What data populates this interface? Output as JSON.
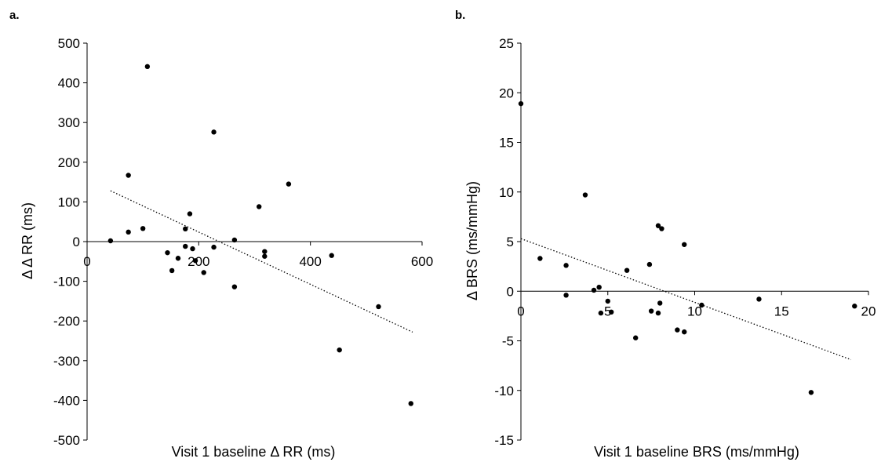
{
  "chart_data": [
    {
      "type": "scatter",
      "panel_label": "a.",
      "xlabel": "Visit 1 baseline Δ RR (ms)",
      "ylabel": "Δ  Δ RR (ms)",
      "xlim": [
        0,
        600
      ],
      "ylim": [
        -500,
        500
      ],
      "xticks": [
        "0",
        "200",
        "400",
        "600"
      ],
      "yticks": [
        "500",
        "400",
        "300",
        "200",
        "100",
        "0",
        "-100",
        "-200",
        "-300",
        "-400",
        "-500"
      ],
      "grid": false,
      "legend": "none",
      "trendline": {
        "style": "dotted",
        "x": [
          42,
          583
        ],
        "y": [
          128,
          -228
        ]
      },
      "points": [
        {
          "x": 42,
          "y": 2
        },
        {
          "x": 74,
          "y": 167
        },
        {
          "x": 74,
          "y": 24
        },
        {
          "x": 100,
          "y": 33
        },
        {
          "x": 108,
          "y": 441
        },
        {
          "x": 144,
          "y": -28
        },
        {
          "x": 152,
          "y": -73
        },
        {
          "x": 163,
          "y": -42
        },
        {
          "x": 176,
          "y": 32
        },
        {
          "x": 176,
          "y": -12
        },
        {
          "x": 184,
          "y": 70
        },
        {
          "x": 189,
          "y": -18
        },
        {
          "x": 194,
          "y": -48
        },
        {
          "x": 209,
          "y": -78
        },
        {
          "x": 227,
          "y": 276
        },
        {
          "x": 227,
          "y": -14
        },
        {
          "x": 264,
          "y": 4
        },
        {
          "x": 264,
          "y": -114
        },
        {
          "x": 308,
          "y": 88
        },
        {
          "x": 318,
          "y": -25
        },
        {
          "x": 318,
          "y": -37
        },
        {
          "x": 361,
          "y": 145
        },
        {
          "x": 438,
          "y": -35
        },
        {
          "x": 452,
          "y": -273
        },
        {
          "x": 522,
          "y": -164
        },
        {
          "x": 580,
          "y": -408
        }
      ]
    },
    {
      "type": "scatter",
      "panel_label": "b.",
      "xlabel": "Visit 1 baseline BRS (ms/mmHg)",
      "ylabel": "Δ BRS (ms/mmHg)",
      "xlim": [
        0,
        20
      ],
      "ylim": [
        -15,
        25
      ],
      "xticks": [
        "0",
        "5",
        "10",
        "15",
        "20"
      ],
      "yticks": [
        "25",
        "20",
        "15",
        "10",
        "5",
        "0",
        "-5",
        "-10",
        "-15"
      ],
      "grid": false,
      "legend": "none",
      "trendline": {
        "style": "dotted",
        "x": [
          0,
          19
        ],
        "y": [
          5.3,
          -6.9
        ]
      },
      "points": [
        {
          "x": 0,
          "y": 18.9
        },
        {
          "x": 1.1,
          "y": 3.3
        },
        {
          "x": 2.6,
          "y": 2.6
        },
        {
          "x": 2.6,
          "y": -0.4
        },
        {
          "x": 3.7,
          "y": 9.7
        },
        {
          "x": 4.2,
          "y": 0.1
        },
        {
          "x": 4.5,
          "y": 0.4
        },
        {
          "x": 4.6,
          "y": -2.2
        },
        {
          "x": 5.0,
          "y": -1.0
        },
        {
          "x": 5.2,
          "y": -2.1
        },
        {
          "x": 6.1,
          "y": 2.1
        },
        {
          "x": 6.6,
          "y": -4.7
        },
        {
          "x": 7.4,
          "y": 2.7
        },
        {
          "x": 7.5,
          "y": -2.0
        },
        {
          "x": 7.9,
          "y": 6.6
        },
        {
          "x": 7.9,
          "y": -2.2
        },
        {
          "x": 8.0,
          "y": -1.2
        },
        {
          "x": 8.1,
          "y": 6.3
        },
        {
          "x": 9.0,
          "y": -3.9
        },
        {
          "x": 9.4,
          "y": 4.7
        },
        {
          "x": 9.4,
          "y": -4.1
        },
        {
          "x": 10.4,
          "y": -1.4
        },
        {
          "x": 13.7,
          "y": -0.8
        },
        {
          "x": 16.7,
          "y": -10.2
        },
        {
          "x": 19.2,
          "y": -1.5
        }
      ]
    }
  ]
}
